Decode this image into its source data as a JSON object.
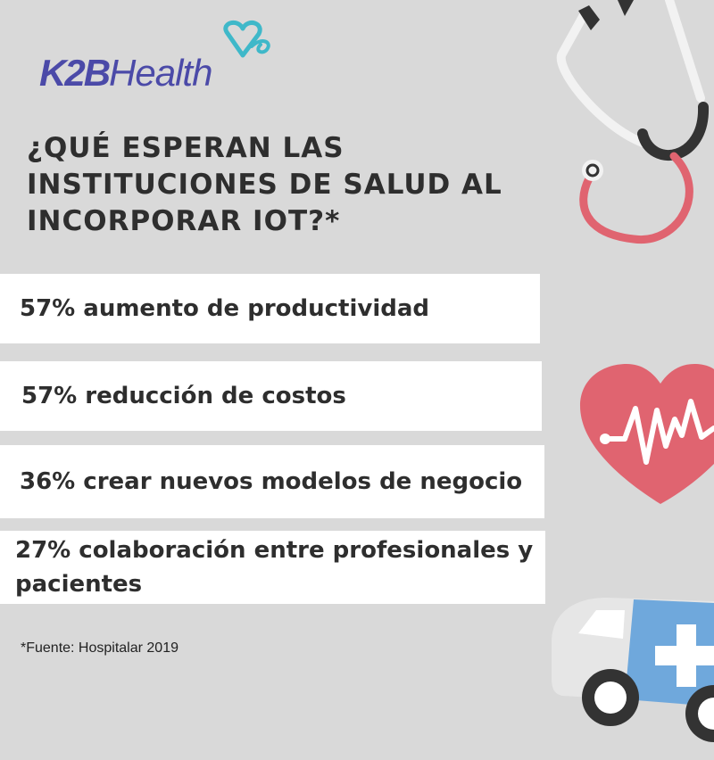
{
  "brand": {
    "name_part1": "K2B",
    "name_part2": "Health"
  },
  "title": "¿QUÉ ESPERAN LAS INSTITUCIONES DE SALUD AL INCORPORAR IOT?*",
  "stats": [
    {
      "text": "57% aumento de productividad"
    },
    {
      "text": "57% reducción de costos"
    },
    {
      "text": "36% crear nuevos modelos de negocio"
    },
    {
      "text": "27% colaboración entre profesionales y pacientes"
    }
  ],
  "source": "*Fuente: Hospitalar 2019",
  "colors": {
    "background": "#d9d9d9",
    "text": "#2e2e2e",
    "brand": "#4b4aa8",
    "brand_heart": "#3fb8c9",
    "heart": "#e06470",
    "ambulance_blue": "#6fa8dc"
  },
  "icons": [
    "stethoscope-icon",
    "heartbeat-icon",
    "ambulance-icon",
    "logo-heart-icon"
  ]
}
